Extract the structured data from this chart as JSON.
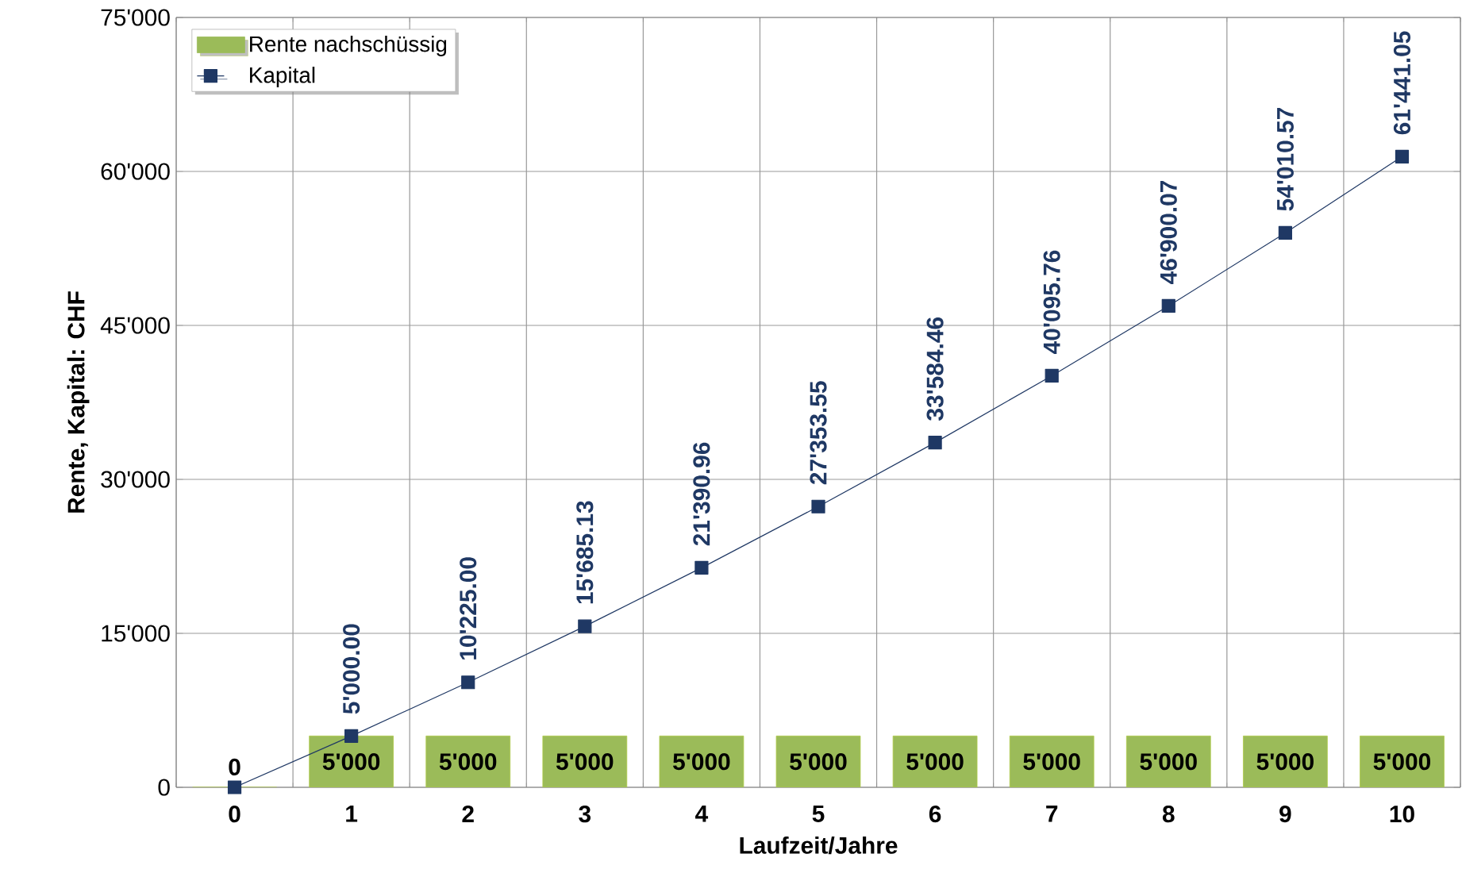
{
  "chart_data": {
    "type": "bar",
    "xlabel": "Laufzeit/Jahre",
    "ylabel": "Rente, Kapital: CHF",
    "categories": [
      "0",
      "1",
      "2",
      "3",
      "4",
      "5",
      "6",
      "7",
      "8",
      "9",
      "10"
    ],
    "series": [
      {
        "name": "Rente nachschüssig",
        "color": "#9bbb59",
        "values": [
          0,
          5000,
          5000,
          5000,
          5000,
          5000,
          5000,
          5000,
          5000,
          5000,
          5000
        ],
        "value_labels": [
          "0",
          "5'000",
          "5'000",
          "5'000",
          "5'000",
          "5'000",
          "5'000",
          "5'000",
          "5'000",
          "5'000",
          "5'000"
        ]
      },
      {
        "name": "Kapital",
        "type": "line",
        "color": "#1f3864",
        "marker": "square",
        "values": [
          0,
          5000,
          10225,
          15685.13,
          21390.96,
          27353.55,
          33584.46,
          40095.76,
          46900.07,
          54010.57,
          61441.05
        ],
        "value_labels": [
          null,
          "5'000.00",
          "10'225.00",
          "15'685.13",
          "21'390.96",
          "27'353.55",
          "33'584.46",
          "40'095.76",
          "46'900.07",
          "54'010.57",
          "61'441.05"
        ]
      }
    ],
    "ylim": [
      0,
      75000
    ],
    "yticks": [
      {
        "value": 0,
        "label": "0"
      },
      {
        "value": 15000,
        "label": "15'000"
      },
      {
        "value": 30000,
        "label": "30'000"
      },
      {
        "value": 45000,
        "label": "45'000"
      },
      {
        "value": 60000,
        "label": "60'000"
      },
      {
        "value": 75000,
        "label": "75'000"
      }
    ],
    "grid": true,
    "legend": "top left"
  }
}
